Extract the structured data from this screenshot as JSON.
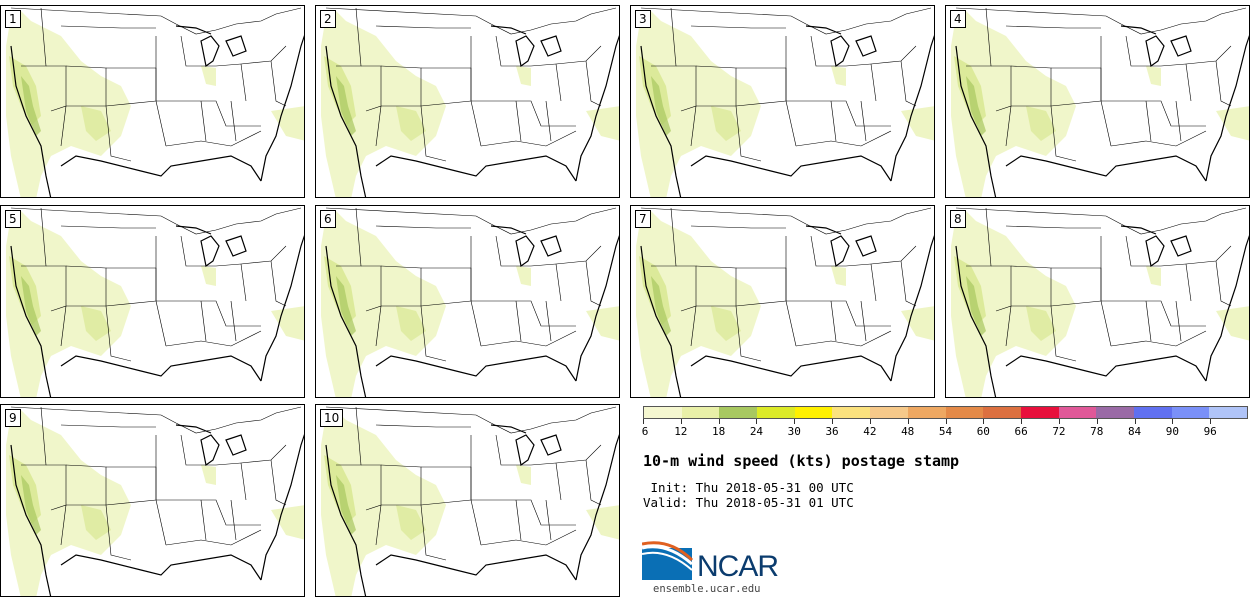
{
  "panels": [
    {
      "label": "1"
    },
    {
      "label": "2"
    },
    {
      "label": "3"
    },
    {
      "label": "4"
    },
    {
      "label": "5"
    },
    {
      "label": "6"
    },
    {
      "label": "7"
    },
    {
      "label": "8"
    },
    {
      "label": "9"
    },
    {
      "label": "10"
    }
  ],
  "colorbar": {
    "colors": [
      "#f5f7d0",
      "#e9f0a8",
      "#a8c860",
      "#dcea28",
      "#fff000",
      "#fbe27e",
      "#f6c98a",
      "#eea862",
      "#e48a48",
      "#dc7040",
      "#e8103c",
      "#e05898",
      "#9a6aa6",
      "#6070f0",
      "#7a90f8",
      "#b0c4f8"
    ],
    "ticks": [
      "6",
      "12",
      "18",
      "24",
      "30",
      "36",
      "42",
      "48",
      "54",
      "60",
      "66",
      "72",
      "78",
      "84",
      "90",
      "96"
    ]
  },
  "title": "10-m wind speed (kts) postage stamp",
  "init": " Init: Thu 2018-05-31 00 UTC",
  "valid": "Valid: Thu 2018-05-31 01 UTC",
  "logo": {
    "text": "NCAR",
    "url": "ensemble.ucar.edu"
  },
  "fill_colors": {
    "light": "#eef5c4",
    "mid": "#dcea9a",
    "dark": "#a8c860"
  }
}
